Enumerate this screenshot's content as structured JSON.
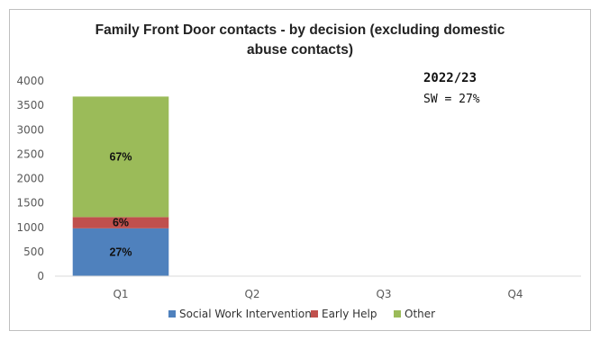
{
  "chart_data": {
    "type": "bar",
    "stacked": true,
    "title_line1": "Family Front Door contacts - by decision  (excluding domestic",
    "title_line2": "abuse contacts)",
    "categories": [
      "Q1",
      "Q2",
      "Q3",
      "Q4"
    ],
    "ylim": [
      0,
      4000
    ],
    "yticks": [
      "0",
      "500",
      "1000",
      "1500",
      "2000",
      "2500",
      "3000",
      "3500",
      "4000"
    ],
    "ytick_values": [
      0,
      500,
      1000,
      1500,
      2000,
      2500,
      3000,
      3500,
      4000
    ],
    "series": [
      {
        "name": "Social Work Intervention",
        "color": "#4f81bd",
        "values": [
          980,
          null,
          null,
          null
        ],
        "labels": [
          "27%",
          "",
          "",
          ""
        ]
      },
      {
        "name": "Early Help",
        "color": "#c0504d",
        "values": [
          230,
          null,
          null,
          null
        ],
        "labels": [
          "6%",
          "",
          "",
          ""
        ]
      },
      {
        "name": "Other",
        "color": "#9bbb59",
        "values": [
          2470,
          null,
          null,
          null
        ],
        "labels": [
          "67%",
          "",
          "",
          ""
        ]
      }
    ],
    "grid": false,
    "legend_position": "bottom",
    "annotation": {
      "line1": "2022/23",
      "line2": "SW = 27%"
    }
  }
}
